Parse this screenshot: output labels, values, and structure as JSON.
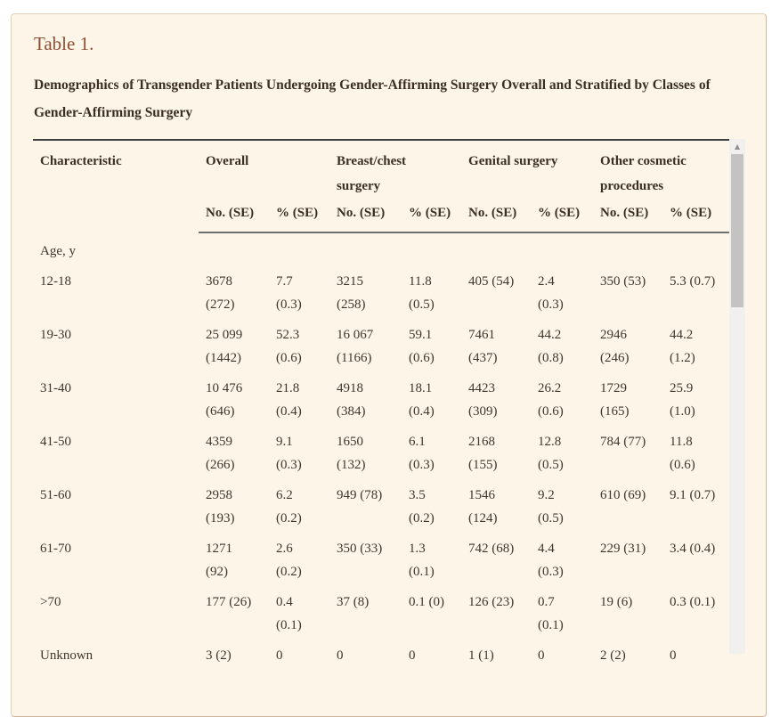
{
  "panel": {
    "title": "Table 1.",
    "caption": "Demographics of Transgender Patients Undergoing Gender-Affirming Surgery Overall and Stratified by Classes of Gender-Affirming Surgery"
  },
  "table": {
    "char_header": "Characteristic",
    "groups": [
      {
        "label": "Overall"
      },
      {
        "label": "Breast/chest\nsurgery"
      },
      {
        "label": "Genital surgery"
      },
      {
        "label": "Other cosmetic\nprocedures"
      }
    ],
    "subheaders": [
      "No. (SE)",
      "% (SE)"
    ],
    "section_row": "Age, y",
    "rows": [
      {
        "label": "12-18",
        "cells": [
          "3678\n(272)",
          "7.7\n(0.3)",
          "3215\n(258)",
          "11.8\n(0.5)",
          "405 (54)",
          "2.4\n(0.3)",
          "350 (53)",
          "5.3 (0.7)"
        ]
      },
      {
        "label": "19-30",
        "cells": [
          "25 099\n(1442)",
          "52.3\n(0.6)",
          "16 067\n(1166)",
          "59.1\n(0.6)",
          "7461\n(437)",
          "44.2\n(0.8)",
          "2946\n(246)",
          "44.2\n(1.2)"
        ]
      },
      {
        "label": "31-40",
        "cells": [
          "10 476\n(646)",
          "21.8\n(0.4)",
          "4918\n(384)",
          "18.1\n(0.4)",
          "4423\n(309)",
          "26.2\n(0.6)",
          "1729\n(165)",
          "25.9\n(1.0)"
        ]
      },
      {
        "label": "41-50",
        "cells": [
          "4359\n(266)",
          "9.1\n(0.3)",
          "1650\n(132)",
          "6.1\n(0.3)",
          "2168\n(155)",
          "12.8\n(0.5)",
          "784 (77)",
          "11.8\n(0.6)"
        ]
      },
      {
        "label": "51-60",
        "cells": [
          "2958\n(193)",
          "6.2\n(0.2)",
          "949 (78)",
          "3.5\n(0.2)",
          "1546\n(124)",
          "9.2\n(0.5)",
          "610 (69)",
          "9.1 (0.7)"
        ]
      },
      {
        "label": "61-70",
        "cells": [
          "1271\n(92)",
          "2.6\n(0.2)",
          "350 (33)",
          "1.3\n(0.1)",
          "742 (68)",
          "4.4\n(0.3)",
          "229 (31)",
          "3.4 (0.4)"
        ]
      },
      {
        "label": ">70",
        "cells": [
          "177 (26)",
          "0.4\n(0.1)",
          "37 (8)",
          "0.1 (0)",
          "126 (23)",
          "0.7\n(0.1)",
          "19 (6)",
          "0.3 (0.1)"
        ]
      },
      {
        "label": "Unknown",
        "cells": [
          "3 (2)",
          "0",
          "0",
          "0",
          "1 (1)",
          "0",
          "2 (2)",
          "0"
        ]
      }
    ]
  },
  "scrollbar": {
    "up_arrow_icon": "▲"
  },
  "colors": {
    "panel_background": "#fdf5e7",
    "panel_border": "#e0d0b6",
    "title_accent": "#8e4e32",
    "text": "#3a2f22",
    "table_top_rule": "#3e3e3e",
    "header_rule": "#6f6f6f",
    "scrollbar_track": "#f1f0ee",
    "scrollbar_thumb": "#c4c3c1"
  }
}
